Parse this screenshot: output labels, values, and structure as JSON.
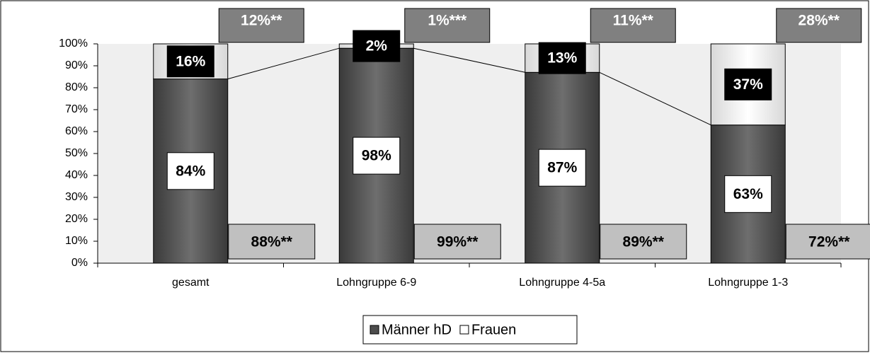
{
  "chart_data": {
    "type": "stacked_bar",
    "categories": [
      "gesamt",
      "Lohngruppe 6-9",
      "Lohngruppe 4-5a",
      "Lohngruppe 1-3"
    ],
    "series": [
      {
        "name": "Männer hD",
        "color": "#4d4d4d",
        "values": [
          84,
          98,
          87,
          63
        ],
        "value_labels": [
          "84%",
          "98%",
          "87%",
          "63%"
        ]
      },
      {
        "name": "Frauen",
        "color": "#ffffff",
        "values": [
          16,
          2,
          13,
          37
        ],
        "value_labels": [
          "16%",
          "2%",
          "13%",
          "37%"
        ]
      }
    ],
    "annotations_top": [
      "12%**",
      "1%***",
      "11%**",
      "28%**"
    ],
    "annotations_bottom": [
      "88%**",
      "99%**",
      "89%**",
      "72%**"
    ],
    "ylim": [
      0,
      100
    ],
    "yticks": [
      {
        "value": 0,
        "label": "0%"
      },
      {
        "value": 10,
        "label": "10%"
      },
      {
        "value": 20,
        "label": "20%"
      },
      {
        "value": 30,
        "label": "30%"
      },
      {
        "value": 40,
        "label": "40%"
      },
      {
        "value": 50,
        "label": "50%"
      },
      {
        "value": 60,
        "label": "60%"
      },
      {
        "value": 70,
        "label": "70%"
      },
      {
        "value": 80,
        "label": "80%"
      },
      {
        "value": 90,
        "label": "90%"
      },
      {
        "value": 100,
        "label": "100%"
      }
    ],
    "legend": "bottom"
  }
}
